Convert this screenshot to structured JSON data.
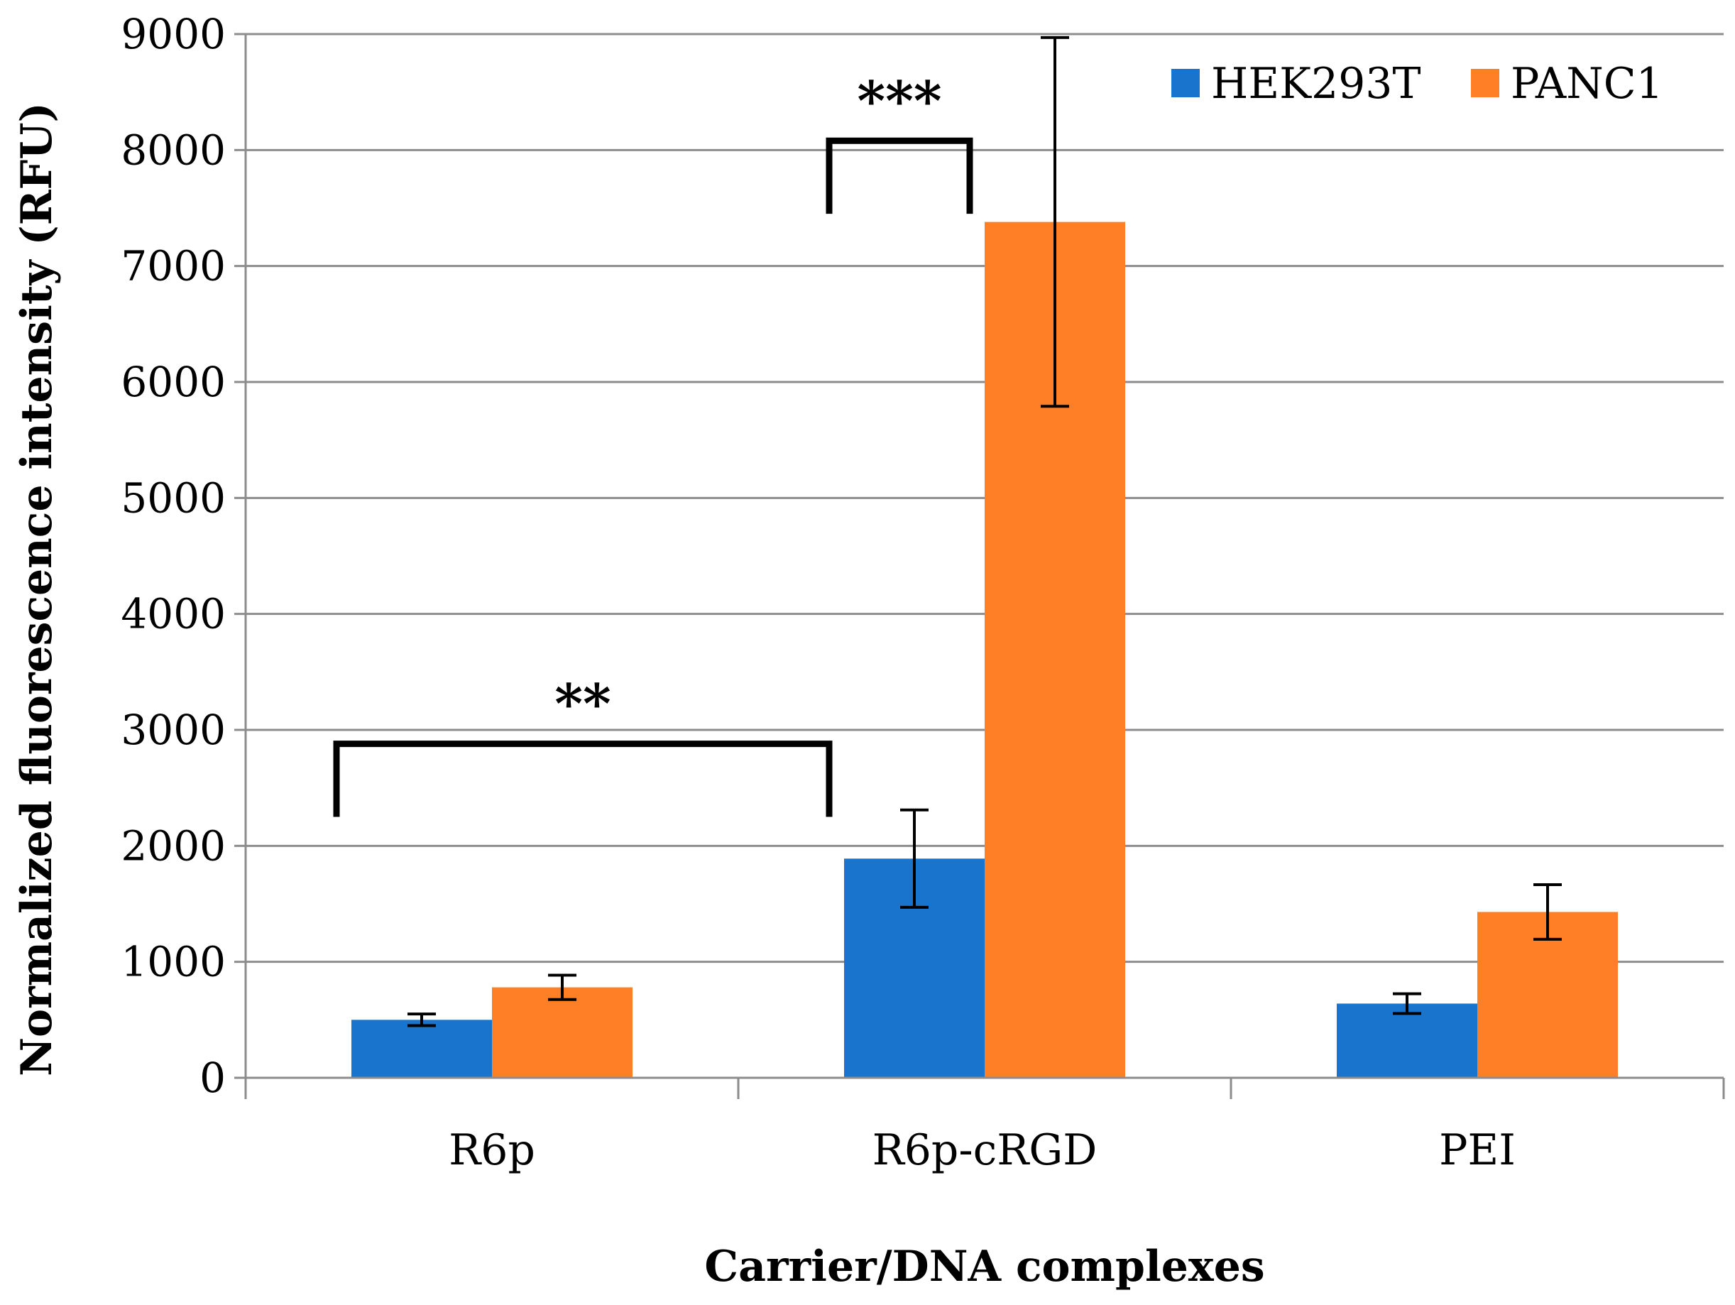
{
  "chart_data": {
    "type": "bar",
    "title": "",
    "xlabel": "Carrier/DNA complexes",
    "ylabel": "Normalized fluorescence intensity (RFU)",
    "ylim": [
      0,
      9000
    ],
    "yticks": [
      "0",
      "1000",
      "2000",
      "3000",
      "4000",
      "5000",
      "6000",
      "7000",
      "8000",
      "9000"
    ],
    "grid": true,
    "legend_position": "top-right",
    "categories": [
      "R6p",
      "R6p-cRGD",
      "PEI"
    ],
    "series": [
      {
        "name": "HEK293T",
        "color": "#1874cd",
        "values": [
          500,
          1890,
          640
        ],
        "errors": [
          50,
          420,
          85
        ]
      },
      {
        "name": "PANC1",
        "color": "#ff7f27",
        "values": [
          780,
          7380,
          1430
        ],
        "errors": [
          105,
          1590,
          235
        ]
      }
    ],
    "annotations": [
      {
        "label": "**",
        "from": {
          "category": 0,
          "series": 0
        },
        "to": {
          "category": 1,
          "series": 0
        },
        "level": 2880,
        "tick_end": 2250
      },
      {
        "label": "***",
        "from": {
          "category": 1,
          "series": 0
        },
        "to": {
          "category": 1,
          "series": 1
        },
        "level": 8080,
        "tick_end": 7450
      }
    ]
  }
}
